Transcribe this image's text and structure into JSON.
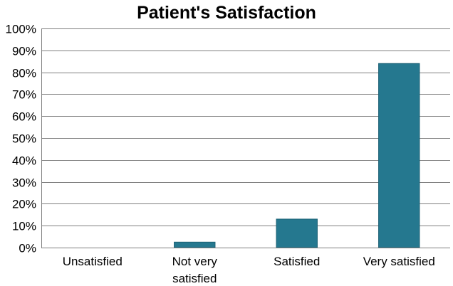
{
  "chart_data": {
    "type": "bar",
    "title": "Patient's Satisfaction",
    "xlabel": "",
    "ylabel": "",
    "categories": [
      [
        "Unsatisfied"
      ],
      [
        "Not very",
        "satisfied"
      ],
      [
        "Satisfied"
      ],
      [
        "Very satisfied"
      ]
    ],
    "values": [
      0,
      2.5,
      13,
      84
    ],
    "ylim": [
      0,
      100
    ],
    "y_ticks": [
      0,
      10,
      20,
      30,
      40,
      50,
      60,
      70,
      80,
      90,
      100
    ],
    "y_tick_format": "percent",
    "grid": true,
    "legend": "none",
    "colors": {
      "bar": "#25788f",
      "bar_edge": "#1d6276",
      "grid": "#7f7f7f",
      "axis": "#7f7f7f"
    }
  }
}
